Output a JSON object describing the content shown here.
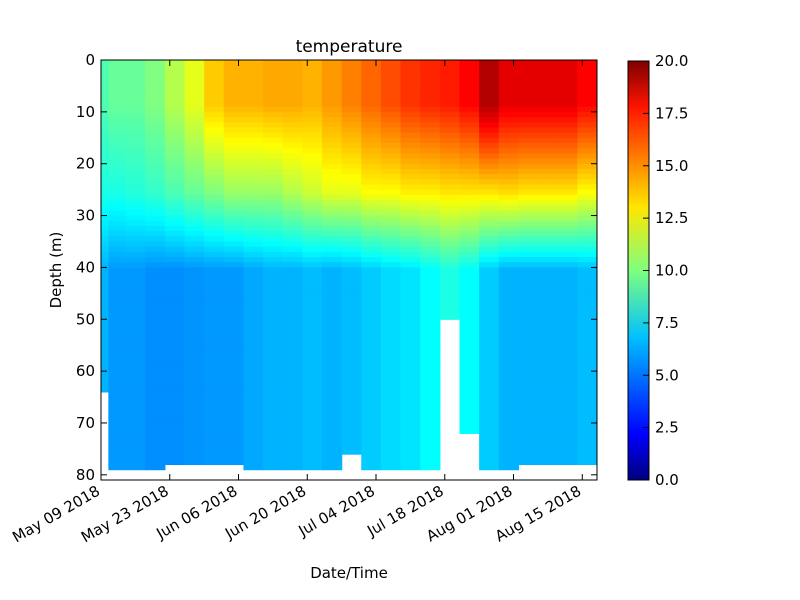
{
  "chart_data": {
    "type": "heatmap",
    "title": "temperature",
    "xlabel": "Date/Time",
    "ylabel": "Depth (m)",
    "x_range": [
      "2018-05-09",
      "2018-08-18"
    ],
    "x_ticks": [
      "May 09 2018",
      "May 23 2018",
      "Jun 06 2018",
      "Jun 20 2018",
      "Jul 04 2018",
      "Jul 18 2018",
      "Aug 01 2018",
      "Aug 15 2018"
    ],
    "x_tick_dates": [
      "2018-05-09",
      "2018-05-23",
      "2018-06-06",
      "2018-06-20",
      "2018-07-04",
      "2018-07-18",
      "2018-08-01",
      "2018-08-15"
    ],
    "ylim": [
      81,
      0
    ],
    "y_ticks": [
      0,
      10,
      20,
      30,
      40,
      50,
      60,
      70,
      80
    ],
    "colorbar": {
      "range": [
        0,
        20
      ],
      "ticks": [
        "0.0",
        "2.5",
        "5.0",
        "7.5",
        "10.0",
        "12.5",
        "15.0",
        "17.5",
        "20.0"
      ],
      "colormap": "jet"
    },
    "profiles": [
      {
        "date": "2018-05-09",
        "surface": 9.0,
        "mid": 8.0,
        "deep": 6.0,
        "max_depth": 64
      },
      {
        "date": "2018-05-12",
        "surface": 9.5,
        "mid": 8.0,
        "deep": 5.5,
        "max_depth": 79
      },
      {
        "date": "2018-05-16",
        "surface": 9.5,
        "mid": 8.2,
        "deep": 5.5,
        "max_depth": 79
      },
      {
        "date": "2018-05-20",
        "surface": 10.0,
        "mid": 8.5,
        "deep": 5.3,
        "max_depth": 79
      },
      {
        "date": "2018-05-24",
        "surface": 11.0,
        "mid": 9.0,
        "deep": 5.3,
        "max_depth": 78
      },
      {
        "date": "2018-05-28",
        "surface": 12.0,
        "mid": 9.5,
        "deep": 5.4,
        "max_depth": 78
      },
      {
        "date": "2018-06-01",
        "surface": 13.5,
        "mid": 10.0,
        "deep": 5.5,
        "max_depth": 78
      },
      {
        "date": "2018-06-05",
        "surface": 14.0,
        "mid": 10.5,
        "deep": 5.5,
        "max_depth": 78
      },
      {
        "date": "2018-06-09",
        "surface": 14.0,
        "mid": 10.5,
        "deep": 5.8,
        "max_depth": 79
      },
      {
        "date": "2018-06-13",
        "surface": 14.2,
        "mid": 10.5,
        "deep": 6.0,
        "max_depth": 79
      },
      {
        "date": "2018-06-17",
        "surface": 14.2,
        "mid": 11.0,
        "deep": 6.0,
        "max_depth": 79
      },
      {
        "date": "2018-06-21",
        "surface": 14.0,
        "mid": 11.5,
        "deep": 6.2,
        "max_depth": 79
      },
      {
        "date": "2018-06-25",
        "surface": 14.5,
        "mid": 12.0,
        "deep": 6.0,
        "max_depth": 79
      },
      {
        "date": "2018-06-29",
        "surface": 15.0,
        "mid": 12.0,
        "deep": 6.2,
        "max_depth": 76
      },
      {
        "date": "2018-07-03",
        "surface": 15.5,
        "mid": 12.5,
        "deep": 6.5,
        "max_depth": 79
      },
      {
        "date": "2018-07-07",
        "surface": 16.0,
        "mid": 12.5,
        "deep": 6.8,
        "max_depth": 79
      },
      {
        "date": "2018-07-11",
        "surface": 16.5,
        "mid": 12.8,
        "deep": 7.0,
        "max_depth": 79
      },
      {
        "date": "2018-07-15",
        "surface": 16.8,
        "mid": 12.8,
        "deep": 7.5,
        "max_depth": 79
      },
      {
        "date": "2018-07-19",
        "surface": 17.0,
        "mid": 13.0,
        "deep": 8.0,
        "max_depth": 50
      },
      {
        "date": "2018-07-23",
        "surface": 17.5,
        "mid": 13.0,
        "deep": 7.5,
        "max_depth": 72
      },
      {
        "date": "2018-07-27",
        "surface": 19.0,
        "mid": 13.0,
        "deep": 6.5,
        "max_depth": 79
      },
      {
        "date": "2018-07-31",
        "surface": 18.0,
        "mid": 13.2,
        "deep": 6.0,
        "max_depth": 79
      },
      {
        "date": "2018-08-04",
        "surface": 18.0,
        "mid": 13.0,
        "deep": 6.0,
        "max_depth": 78
      },
      {
        "date": "2018-08-08",
        "surface": 18.0,
        "mid": 13.0,
        "deep": 6.0,
        "max_depth": 78
      },
      {
        "date": "2018-08-12",
        "surface": 18.0,
        "mid": 13.0,
        "deep": 6.0,
        "max_depth": 78
      },
      {
        "date": "2018-08-16",
        "surface": 17.5,
        "mid": 12.5,
        "deep": 6.2,
        "max_depth": 78
      }
    ]
  }
}
